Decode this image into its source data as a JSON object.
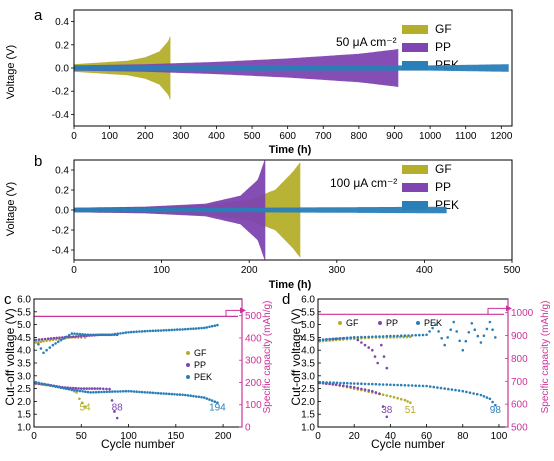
{
  "colors": {
    "GF": "#b5ae2b",
    "PP": "#7f45b1",
    "PEK": "#2a7fb8",
    "capacity_axis": "#cc3399"
  },
  "chart_data": [
    {
      "panel_label": "a",
      "type": "line",
      "title": "",
      "annotation": "50 μA cm⁻²",
      "xlabel": "Time (h)",
      "ylabel": "Voltage (V)",
      "xlim": [
        0,
        1230
      ],
      "ylim": [
        -0.5,
        0.5
      ],
      "xticks": [
        "0",
        "100",
        "200",
        "300",
        "400",
        "500",
        "600",
        "700",
        "800",
        "900",
        "1000",
        "1100",
        "1200"
      ],
      "yticks": [
        "-0.4",
        "-0.2",
        "0.0",
        "0.2",
        "0.4"
      ],
      "legend": [
        "GF",
        "PP",
        "PEK"
      ],
      "legend_position": "top-right",
      "series": [
        {
          "name": "GF",
          "color": "#b5ae2b",
          "end_time": 270,
          "envelope": [
            [
              0,
              0.03
            ],
            [
              50,
              0.04
            ],
            [
              100,
              0.05
            ],
            [
              150,
              0.06
            ],
            [
              200,
              0.09
            ],
            [
              240,
              0.14
            ],
            [
              265,
              0.23
            ],
            [
              270,
              0.27
            ]
          ]
        },
        {
          "name": "PP",
          "color": "#7f45b1",
          "end_time": 910,
          "envelope": [
            [
              0,
              0.02
            ],
            [
              200,
              0.03
            ],
            [
              400,
              0.05
            ],
            [
              600,
              0.08
            ],
            [
              800,
              0.12
            ],
            [
              910,
              0.16
            ]
          ]
        },
        {
          "name": "PEK",
          "color": "#2a7fb8",
          "end_time": 1220,
          "envelope": [
            [
              0,
              0.02
            ],
            [
              600,
              0.02
            ],
            [
              1000,
              0.02
            ],
            [
              1220,
              0.03
            ]
          ]
        }
      ]
    },
    {
      "panel_label": "b",
      "type": "line",
      "title": "",
      "annotation": "100 μA cm⁻²",
      "xlabel": "Time (h)",
      "ylabel": "Voltage (V)",
      "xlim": [
        0,
        500
      ],
      "ylim": [
        -0.5,
        0.5
      ],
      "xticks": [
        "0",
        "100",
        "200",
        "300",
        "400",
        "500"
      ],
      "yticks": [
        "-0.4",
        "-0.2",
        "0.0",
        "0.2",
        "0.4"
      ],
      "legend": [
        "GF",
        "PP",
        "PEK"
      ],
      "legend_position": "top-right",
      "series": [
        {
          "name": "GF",
          "color": "#b5ae2b",
          "end_time": 258,
          "envelope": [
            [
              0,
              0.02
            ],
            [
              100,
              0.03
            ],
            [
              150,
              0.05
            ],
            [
              200,
              0.1
            ],
            [
              230,
              0.2
            ],
            [
              250,
              0.38
            ],
            [
              258,
              0.47
            ]
          ]
        },
        {
          "name": "PP",
          "color": "#7f45b1",
          "end_time": 218,
          "envelope": [
            [
              0,
              0.02
            ],
            [
              80,
              0.03
            ],
            [
              150,
              0.06
            ],
            [
              190,
              0.14
            ],
            [
              210,
              0.3
            ],
            [
              218,
              0.5
            ]
          ]
        },
        {
          "name": "PEK",
          "color": "#2a7fb8",
          "end_time": 425,
          "envelope": [
            [
              0,
              0.02
            ],
            [
              200,
              0.02
            ],
            [
              425,
              0.03
            ]
          ]
        }
      ]
    },
    {
      "panel_label": "c",
      "type": "scatter",
      "title": "",
      "xlabel": "Cycle number",
      "ylabel": "Cut-off voltage (V)",
      "y2label": "Specific capacity (mAh/g)",
      "xlim": [
        0,
        220
      ],
      "ylim": [
        1.0,
        6.0
      ],
      "y2lim": [
        0,
        575
      ],
      "xticks": [
        "0",
        "50",
        "100",
        "150",
        "200"
      ],
      "yticks": [
        "1.0",
        "1.5",
        "2.0",
        "2.5",
        "3.0",
        "3.5",
        "4.0",
        "4.5",
        "5.0",
        "5.5",
        "6.0"
      ],
      "y2ticks": [
        "0",
        "100",
        "200",
        "300",
        "400",
        "500"
      ],
      "capacity_value": 497,
      "legend": [
        "GF",
        "PP",
        "PEK"
      ],
      "legend_position": "center-right",
      "cycle_labels": [
        {
          "text": "54",
          "series": "GF",
          "x": 54,
          "y": 1.65
        },
        {
          "text": "88",
          "series": "PP",
          "x": 88,
          "y": 1.65
        },
        {
          "text": "194",
          "series": "PEK",
          "x": 194,
          "y": 1.65
        }
      ],
      "series": [
        {
          "name": "GF",
          "color": "#b5ae2b",
          "charge": [
            [
              2,
              4.3
            ],
            [
              10,
              4.35
            ],
            [
              20,
              4.4
            ],
            [
              30,
              4.45
            ],
            [
              40,
              4.5
            ],
            [
              50,
              4.5
            ],
            [
              54,
              4.5
            ]
          ],
          "discharge": [
            [
              2,
              2.7
            ],
            [
              10,
              2.65
            ],
            [
              20,
              2.6
            ],
            [
              30,
              2.55
            ],
            [
              40,
              2.45
            ],
            [
              45,
              2.35
            ],
            [
              48,
              2.1
            ],
            [
              51,
              1.95
            ],
            [
              54,
              1.8
            ]
          ]
        },
        {
          "name": "PP",
          "color": "#7f45b1",
          "charge": [
            [
              2,
              4.4
            ],
            [
              15,
              4.45
            ],
            [
              30,
              4.5
            ],
            [
              50,
              4.55
            ],
            [
              70,
              4.6
            ],
            [
              88,
              4.6
            ]
          ],
          "discharge": [
            [
              2,
              2.7
            ],
            [
              15,
              2.65
            ],
            [
              30,
              2.55
            ],
            [
              50,
              2.5
            ],
            [
              70,
              2.5
            ],
            [
              80,
              2.48
            ],
            [
              85,
              1.6
            ],
            [
              88,
              1.35
            ]
          ]
        },
        {
          "name": "PEK",
          "color": "#2a7fb8",
          "charge": [
            [
              2,
              4.4
            ],
            [
              10,
              3.9
            ],
            [
              20,
              4.2
            ],
            [
              40,
              4.65
            ],
            [
              60,
              4.6
            ],
            [
              80,
              4.6
            ],
            [
              100,
              4.7
            ],
            [
              120,
              4.75
            ],
            [
              140,
              4.78
            ],
            [
              160,
              4.82
            ],
            [
              180,
              4.87
            ],
            [
              194,
              4.98
            ]
          ],
          "discharge": [
            [
              2,
              2.75
            ],
            [
              20,
              2.6
            ],
            [
              40,
              2.45
            ],
            [
              60,
              2.35
            ],
            [
              80,
              2.38
            ],
            [
              100,
              2.4
            ],
            [
              120,
              2.35
            ],
            [
              140,
              2.3
            ],
            [
              160,
              2.25
            ],
            [
              180,
              2.15
            ],
            [
              194,
              1.95
            ]
          ]
        }
      ]
    },
    {
      "panel_label": "d",
      "type": "scatter",
      "title": "",
      "xlabel": "Cycle number",
      "ylabel": "Cut-off voltage (V)",
      "y2label": "Specific capacity (mAh/g)",
      "xlim": [
        0,
        105
      ],
      "ylim": [
        1.0,
        6.0
      ],
      "y2lim": [
        500,
        1060
      ],
      "xticks": [
        "0",
        "20",
        "40",
        "60",
        "80",
        "100"
      ],
      "yticks": [
        "1.0",
        "1.5",
        "2.0",
        "2.5",
        "3.0",
        "3.5",
        "4.0",
        "4.5",
        "5.0",
        "5.5",
        "6.0"
      ],
      "y2ticks": [
        "500",
        "600",
        "700",
        "800",
        "900",
        "1000"
      ],
      "capacity_value": 993,
      "legend": [
        "GF",
        "PP",
        "PEK"
      ],
      "legend_position": "top",
      "cycle_labels": [
        {
          "text": "38",
          "series": "PP",
          "x": 38,
          "y": 1.55
        },
        {
          "text": "51",
          "series": "GF",
          "x": 51,
          "y": 1.55
        },
        {
          "text": "98",
          "series": "PEK",
          "x": 98,
          "y": 1.55
        }
      ],
      "series": [
        {
          "name": "GF",
          "color": "#b5ae2b",
          "charge": [
            [
              1,
              4.35
            ],
            [
              10,
              4.4
            ],
            [
              20,
              4.45
            ],
            [
              30,
              4.5
            ],
            [
              40,
              4.5
            ],
            [
              51,
              4.52
            ]
          ],
          "discharge": [
            [
              1,
              2.75
            ],
            [
              10,
              2.65
            ],
            [
              20,
              2.5
            ],
            [
              30,
              2.35
            ],
            [
              40,
              2.2
            ],
            [
              48,
              2.05
            ],
            [
              51,
              1.95
            ]
          ]
        },
        {
          "name": "PP",
          "color": "#7f45b1",
          "charge": [
            [
              1,
              4.4
            ],
            [
              10,
              4.45
            ],
            [
              20,
              4.5
            ],
            [
              30,
              4.0
            ],
            [
              33,
              3.5
            ],
            [
              35,
              4.2
            ],
            [
              38,
              3.3
            ]
          ],
          "discharge": [
            [
              1,
              2.72
            ],
            [
              10,
              2.65
            ],
            [
              20,
              2.55
            ],
            [
              30,
              2.4
            ],
            [
              34,
              2.3
            ],
            [
              36,
              1.8
            ],
            [
              38,
              1.4
            ]
          ]
        },
        {
          "name": "PEK",
          "color": "#2a7fb8",
          "charge": [
            [
              1,
              4.4
            ],
            [
              20,
              4.5
            ],
            [
              40,
              4.55
            ],
            [
              60,
              4.6
            ],
            [
              65,
              5.0
            ],
            [
              70,
              4.2
            ],
            [
              75,
              5.1
            ],
            [
              80,
              4.0
            ],
            [
              85,
              5.05
            ],
            [
              90,
              4.3
            ],
            [
              95,
              5.1
            ],
            [
              98,
              4.5
            ]
          ],
          "discharge": [
            [
              1,
              2.75
            ],
            [
              20,
              2.7
            ],
            [
              40,
              2.65
            ],
            [
              60,
              2.6
            ],
            [
              70,
              2.5
            ],
            [
              80,
              2.4
            ],
            [
              90,
              2.25
            ],
            [
              95,
              2.1
            ],
            [
              98,
              1.85
            ]
          ]
        }
      ]
    }
  ]
}
